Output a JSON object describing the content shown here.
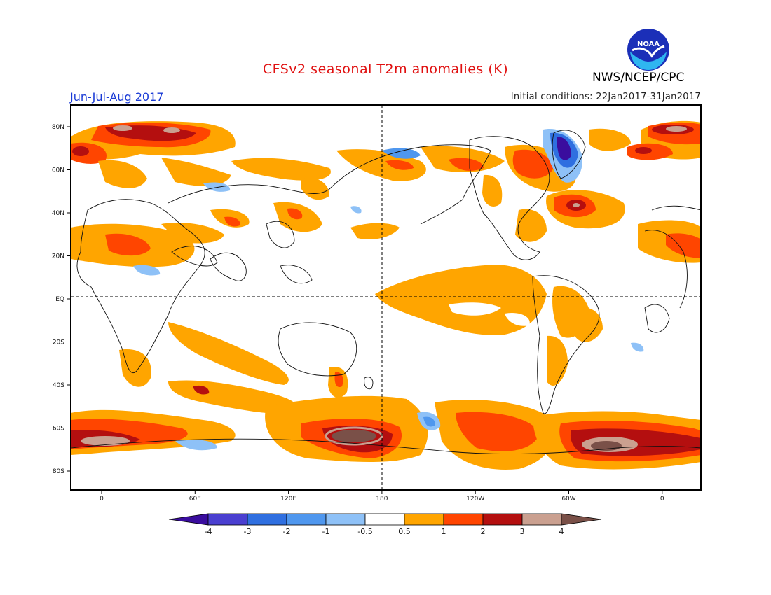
{
  "title": "CFSv2 seasonal T2m anomalies (K)",
  "period": "Jun-Jul-Aug 2017",
  "initial_conditions": "Initial conditions: 22Jan2017-31Jan2017",
  "agency": "NWS/NCEP/CPC",
  "logo_text": "NOAA",
  "lat_labels": [
    "80N",
    "60N",
    "40N",
    "20N",
    "EQ",
    "20S",
    "40S",
    "60S",
    "80S"
  ],
  "lon_labels": [
    "0",
    "60E",
    "120E",
    "180",
    "120W",
    "60W",
    "0"
  ],
  "colorbar": {
    "labels": [
      "-4",
      "-3",
      "-2",
      "-1",
      "-0.5",
      "0.5",
      "1",
      "2",
      "3",
      "4"
    ],
    "colors": [
      "#3a0d9e",
      "#4a3fd0",
      "#2f6fe0",
      "#4f97ee",
      "#8ec1f7",
      "#ffffff",
      "#ffa500",
      "#ff4500",
      "#b40f0f",
      "#caa090",
      "#7a5048"
    ]
  }
}
